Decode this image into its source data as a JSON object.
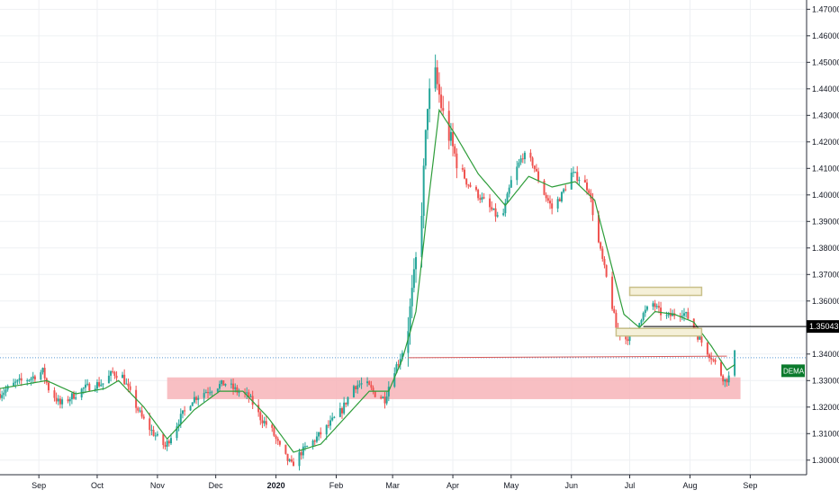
{
  "chart_data": {
    "type": "candlestick",
    "x_range": [
      "2019-08-12",
      "2020-09-30"
    ],
    "y_range": [
      1.2945,
      1.4735
    ],
    "y_ticks": [
      "1.47000",
      "1.46000",
      "1.45000",
      "1.44000",
      "1.43000",
      "1.42000",
      "1.41000",
      "1.40000",
      "1.39000",
      "1.38000",
      "1.37000",
      "1.36000",
      "1.35000",
      "1.34000",
      "1.33000",
      "1.32000",
      "1.31000",
      "1.30000"
    ],
    "x_ticks": [
      {
        "label": "Sep",
        "date": "2019-09-01",
        "bold": false
      },
      {
        "label": "Oct",
        "date": "2019-10-01",
        "bold": false
      },
      {
        "label": "Nov",
        "date": "2019-11-01",
        "bold": false
      },
      {
        "label": "Dec",
        "date": "2019-12-01",
        "bold": false
      },
      {
        "label": "2020",
        "date": "2020-01-01",
        "bold": true
      },
      {
        "label": "Feb",
        "date": "2020-02-01",
        "bold": false
      },
      {
        "label": "Mar",
        "date": "2020-03-01",
        "bold": false
      },
      {
        "label": "Apr",
        "date": "2020-04-01",
        "bold": false
      },
      {
        "label": "May",
        "date": "2020-05-01",
        "bold": false
      },
      {
        "label": "Jun",
        "date": "2020-06-01",
        "bold": false
      },
      {
        "label": "Jul",
        "date": "2020-07-01",
        "bold": false
      },
      {
        "label": "Aug",
        "date": "2020-08-01",
        "bold": false
      },
      {
        "label": "Sep",
        "date": "2020-09-01",
        "bold": false
      }
    ],
    "price_path": [
      [
        "2019-08-12",
        1.325
      ],
      [
        "2019-08-20",
        1.329
      ],
      [
        "2019-08-28",
        1.331
      ],
      [
        "2019-09-03",
        1.3335
      ],
      [
        "2019-09-06",
        1.327
      ],
      [
        "2019-09-12",
        1.321
      ],
      [
        "2019-09-18",
        1.324
      ],
      [
        "2019-09-24",
        1.327
      ],
      [
        "2019-09-30",
        1.3285
      ],
      [
        "2019-10-04",
        1.329
      ],
      [
        "2019-10-09",
        1.333
      ],
      [
        "2019-10-14",
        1.3315
      ],
      [
        "2019-10-18",
        1.325
      ],
      [
        "2019-10-24",
        1.316
      ],
      [
        "2019-10-29",
        1.311
      ],
      [
        "2019-11-05",
        1.305
      ],
      [
        "2019-11-12",
        1.315
      ],
      [
        "2019-11-19",
        1.323
      ],
      [
        "2019-11-26",
        1.326
      ],
      [
        "2019-12-02",
        1.328
      ],
      [
        "2019-12-06",
        1.329
      ],
      [
        "2019-12-12",
        1.326
      ],
      [
        "2019-12-18",
        1.324
      ],
      [
        "2019-12-24",
        1.316
      ],
      [
        "2019-12-30",
        1.311
      ],
      [
        "2020-01-04",
        1.303
      ],
      [
        "2020-01-09",
        1.298
      ],
      [
        "2020-01-14",
        1.303
      ],
      [
        "2020-01-20",
        1.307
      ],
      [
        "2020-01-28",
        1.313
      ],
      [
        "2020-02-04",
        1.319
      ],
      [
        "2020-02-10",
        1.328
      ],
      [
        "2020-02-16",
        1.329
      ],
      [
        "2020-02-21",
        1.325
      ],
      [
        "2020-02-26",
        1.323
      ],
      [
        "2020-03-01",
        1.333
      ],
      [
        "2020-03-04",
        1.337
      ],
      [
        "2020-03-08",
        1.345
      ],
      [
        "2020-03-12",
        1.368
      ],
      [
        "2020-03-16",
        1.395
      ],
      [
        "2020-03-19",
        1.435
      ],
      [
        "2020-03-23",
        1.445
      ],
      [
        "2020-03-27",
        1.43
      ],
      [
        "2020-04-02",
        1.415
      ],
      [
        "2020-04-08",
        1.405
      ],
      [
        "2020-04-14",
        1.4
      ],
      [
        "2020-04-20",
        1.395
      ],
      [
        "2020-04-26",
        1.39
      ],
      [
        "2020-05-01",
        1.405
      ],
      [
        "2020-05-07",
        1.415
      ],
      [
        "2020-05-12",
        1.412
      ],
      [
        "2020-05-17",
        1.402
      ],
      [
        "2020-05-22",
        1.395
      ],
      [
        "2020-05-27",
        1.4
      ],
      [
        "2020-06-01",
        1.408
      ],
      [
        "2020-06-06",
        1.406
      ],
      [
        "2020-06-10",
        1.402
      ],
      [
        "2020-06-14",
        1.385
      ],
      [
        "2020-06-18",
        1.372
      ],
      [
        "2020-06-21",
        1.362
      ],
      [
        "2020-06-24",
        1.35
      ],
      [
        "2020-06-28",
        1.345
      ],
      [
        "2020-07-02",
        1.348
      ],
      [
        "2020-07-05",
        1.352
      ],
      [
        "2020-07-09",
        1.356
      ],
      [
        "2020-07-13",
        1.359
      ],
      [
        "2020-07-16",
        1.356
      ],
      [
        "2020-07-20",
        1.354
      ],
      [
        "2020-07-24",
        1.355
      ],
      [
        "2020-07-28",
        1.356
      ],
      [
        "2020-08-01",
        1.353
      ],
      [
        "2020-08-05",
        1.347
      ],
      [
        "2020-08-09",
        1.342
      ],
      [
        "2020-08-12",
        1.339
      ],
      [
        "2020-08-15",
        1.335
      ],
      [
        "2020-08-19",
        1.33
      ],
      [
        "2020-08-22",
        1.332
      ],
      [
        "2020-08-24",
        1.34
      ]
    ],
    "ma_path": [
      [
        "2019-08-12",
        1.327
      ],
      [
        "2019-09-05",
        1.33
      ],
      [
        "2019-09-20",
        1.325
      ],
      [
        "2019-10-05",
        1.327
      ],
      [
        "2019-10-12",
        1.33
      ],
      [
        "2019-10-25",
        1.32
      ],
      [
        "2019-11-06",
        1.308
      ],
      [
        "2019-11-20",
        1.319
      ],
      [
        "2019-12-03",
        1.326
      ],
      [
        "2019-12-15",
        1.326
      ],
      [
        "2019-12-28",
        1.316
      ],
      [
        "2020-01-10",
        1.303
      ],
      [
        "2020-01-24",
        1.306
      ],
      [
        "2020-02-08",
        1.318
      ],
      [
        "2020-02-18",
        1.326
      ],
      [
        "2020-02-28",
        1.326
      ],
      [
        "2020-03-06",
        1.338
      ],
      [
        "2020-03-13",
        1.356
      ],
      [
        "2020-03-19",
        1.395
      ],
      [
        "2020-03-25",
        1.432
      ],
      [
        "2020-04-02",
        1.423
      ],
      [
        "2020-04-14",
        1.408
      ],
      [
        "2020-04-28",
        1.396
      ],
      [
        "2020-05-10",
        1.407
      ],
      [
        "2020-05-22",
        1.403
      ],
      [
        "2020-06-03",
        1.405
      ],
      [
        "2020-06-13",
        1.398
      ],
      [
        "2020-06-20",
        1.378
      ],
      [
        "2020-06-28",
        1.355
      ],
      [
        "2020-07-06",
        1.35
      ],
      [
        "2020-07-14",
        1.356
      ],
      [
        "2020-07-24",
        1.355
      ],
      [
        "2020-08-03",
        1.352
      ],
      [
        "2020-08-12",
        1.343
      ],
      [
        "2020-08-20",
        1.334
      ],
      [
        "2020-08-24",
        1.336
      ]
    ],
    "shapes": {
      "support_zone": {
        "date_start": "2019-11-06",
        "date_end": "2020-08-27",
        "y_low": 1.323,
        "y_high": 1.3312,
        "color": "#f7b4b9"
      },
      "upper_box": {
        "date_start": "2020-07-01",
        "date_end": "2020-08-07",
        "y_low": 1.3628,
        "y_high": 1.3645,
        "color": "#c9c08a"
      },
      "lower_box": {
        "date_start": "2020-06-24",
        "date_end": "2020-08-07",
        "y_low": 1.3475,
        "y_high": 1.349,
        "color": "#c9c08a"
      },
      "black_hline": {
        "date_start": "2020-07-08",
        "y": 1.3504,
        "color": "#000000"
      },
      "trend_line": {
        "date_start": "2020-03-09",
        "y_start": 1.3386,
        "date_end": "2020-08-20",
        "y_end": 1.3392,
        "color": "#d65a5a"
      },
      "dotted_hline": {
        "y": 1.3386,
        "color": "#5b9bd5"
      }
    },
    "price_label": {
      "value": "1.35043",
      "y": 1.3504,
      "color": "#000000"
    },
    "indicator_label": {
      "text": "DEMA",
      "y": 1.3337,
      "color": "#0b7a2c"
    },
    "colors": {
      "up": "#26a69a",
      "down": "#ef5350",
      "ma": "#2e9d3a",
      "grid": "#eef0f3",
      "axis": "#2a2e39"
    }
  }
}
